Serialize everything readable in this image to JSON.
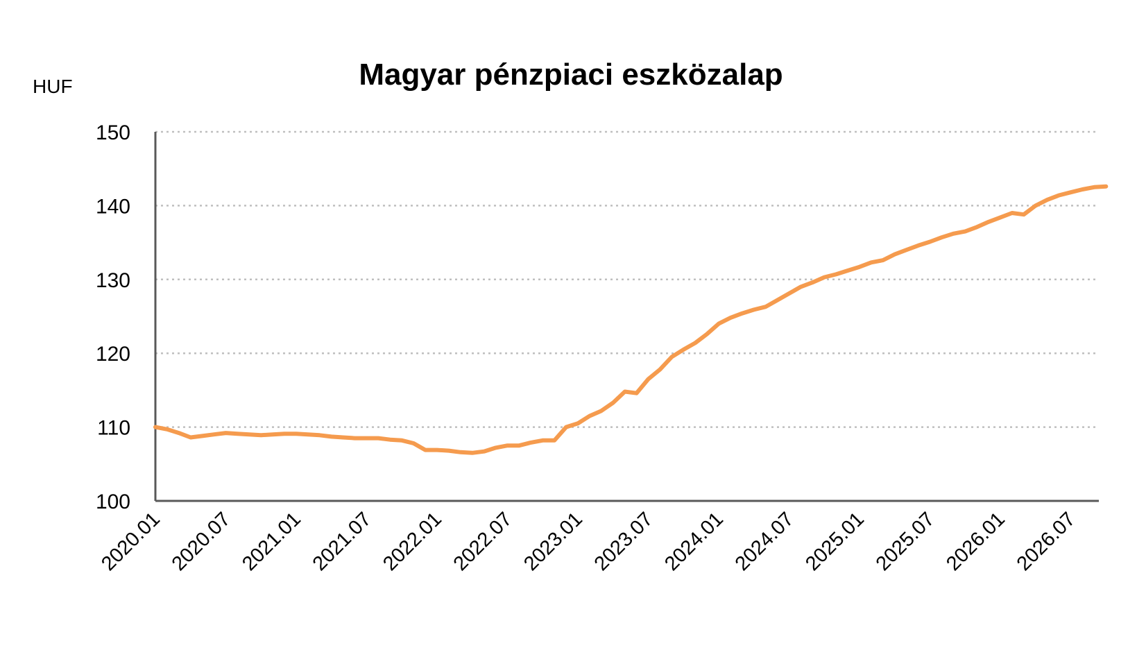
{
  "chart_data": {
    "type": "line",
    "title": "Magyar pénzpiaci eszközalap",
    "ylabel": "HUF",
    "xlabel": "",
    "ylim": [
      100,
      150
    ],
    "yticks": [
      "100",
      "110",
      "120",
      "130",
      "140",
      "150"
    ],
    "xticks": [
      "2020.01",
      "2020.07",
      "2021.01",
      "2021.07",
      "2022.01",
      "2022.07",
      "2023.01",
      "2023.07",
      "2024.01",
      "2024.07",
      "2025.01",
      "2025.07",
      "2026.01",
      "2026.07"
    ],
    "grid": "horizontal-dotted",
    "line_color": "#F59B4E",
    "series": [
      {
        "x": [
          "2020.01",
          "2020.02",
          "2020.03",
          "2020.04",
          "2020.05",
          "2020.06",
          "2020.07",
          "2020.08",
          "2020.09",
          "2020.10",
          "2020.11",
          "2020.12",
          "2021.01",
          "2021.02",
          "2021.03",
          "2021.04",
          "2021.05",
          "2021.06",
          "2021.07",
          "2021.08",
          "2021.09",
          "2021.10",
          "2021.11",
          "2021.12",
          "2022.01",
          "2022.02",
          "2022.03",
          "2022.04",
          "2022.05",
          "2022.06",
          "2022.07",
          "2022.08",
          "2022.09",
          "2022.10",
          "2022.11",
          "2022.12",
          "2023.01",
          "2023.02",
          "2023.03",
          "2023.04",
          "2023.05",
          "2023.06",
          "2023.07",
          "2023.08",
          "2023.09",
          "2023.10",
          "2023.11",
          "2023.12",
          "2024.01",
          "2024.02",
          "2024.03",
          "2024.04",
          "2024.05",
          "2024.06",
          "2024.07",
          "2024.08",
          "2024.09",
          "2024.10",
          "2024.11",
          "2024.12",
          "2025.01",
          "2025.02",
          "2025.03",
          "2025.04",
          "2025.05",
          "2025.06",
          "2025.07",
          "2025.08",
          "2025.09",
          "2025.10",
          "2025.11",
          "2025.12",
          "2026.01",
          "2026.02",
          "2026.03",
          "2026.04",
          "2026.05",
          "2026.06",
          "2026.07",
          "2026.08",
          "2026.09",
          "2026.10"
        ],
        "values": [
          110.0,
          109.7,
          109.2,
          108.6,
          108.8,
          109.0,
          109.2,
          109.1,
          109.0,
          108.9,
          109.0,
          109.1,
          109.1,
          109.0,
          108.9,
          108.7,
          108.6,
          108.5,
          108.5,
          108.5,
          108.3,
          108.2,
          107.8,
          106.9,
          106.9,
          106.8,
          106.6,
          106.5,
          106.7,
          107.2,
          107.5,
          107.5,
          107.9,
          108.2,
          108.2,
          110.0,
          110.5,
          111.5,
          112.2,
          113.3,
          114.8,
          114.6,
          116.5,
          117.8,
          119.5,
          120.5,
          121.4,
          122.6,
          124.0,
          124.8,
          125.4,
          125.9,
          126.3,
          127.2,
          128.1,
          129.0,
          129.6,
          130.3,
          130.7,
          131.2,
          131.7,
          132.3,
          132.6,
          133.4,
          134.0,
          134.6,
          135.1,
          135.7,
          136.2,
          136.5,
          137.1,
          137.8,
          138.4,
          139.0,
          138.8,
          140.0,
          140.8,
          141.4,
          141.8,
          142.2,
          142.5,
          142.6
        ]
      }
    ]
  }
}
